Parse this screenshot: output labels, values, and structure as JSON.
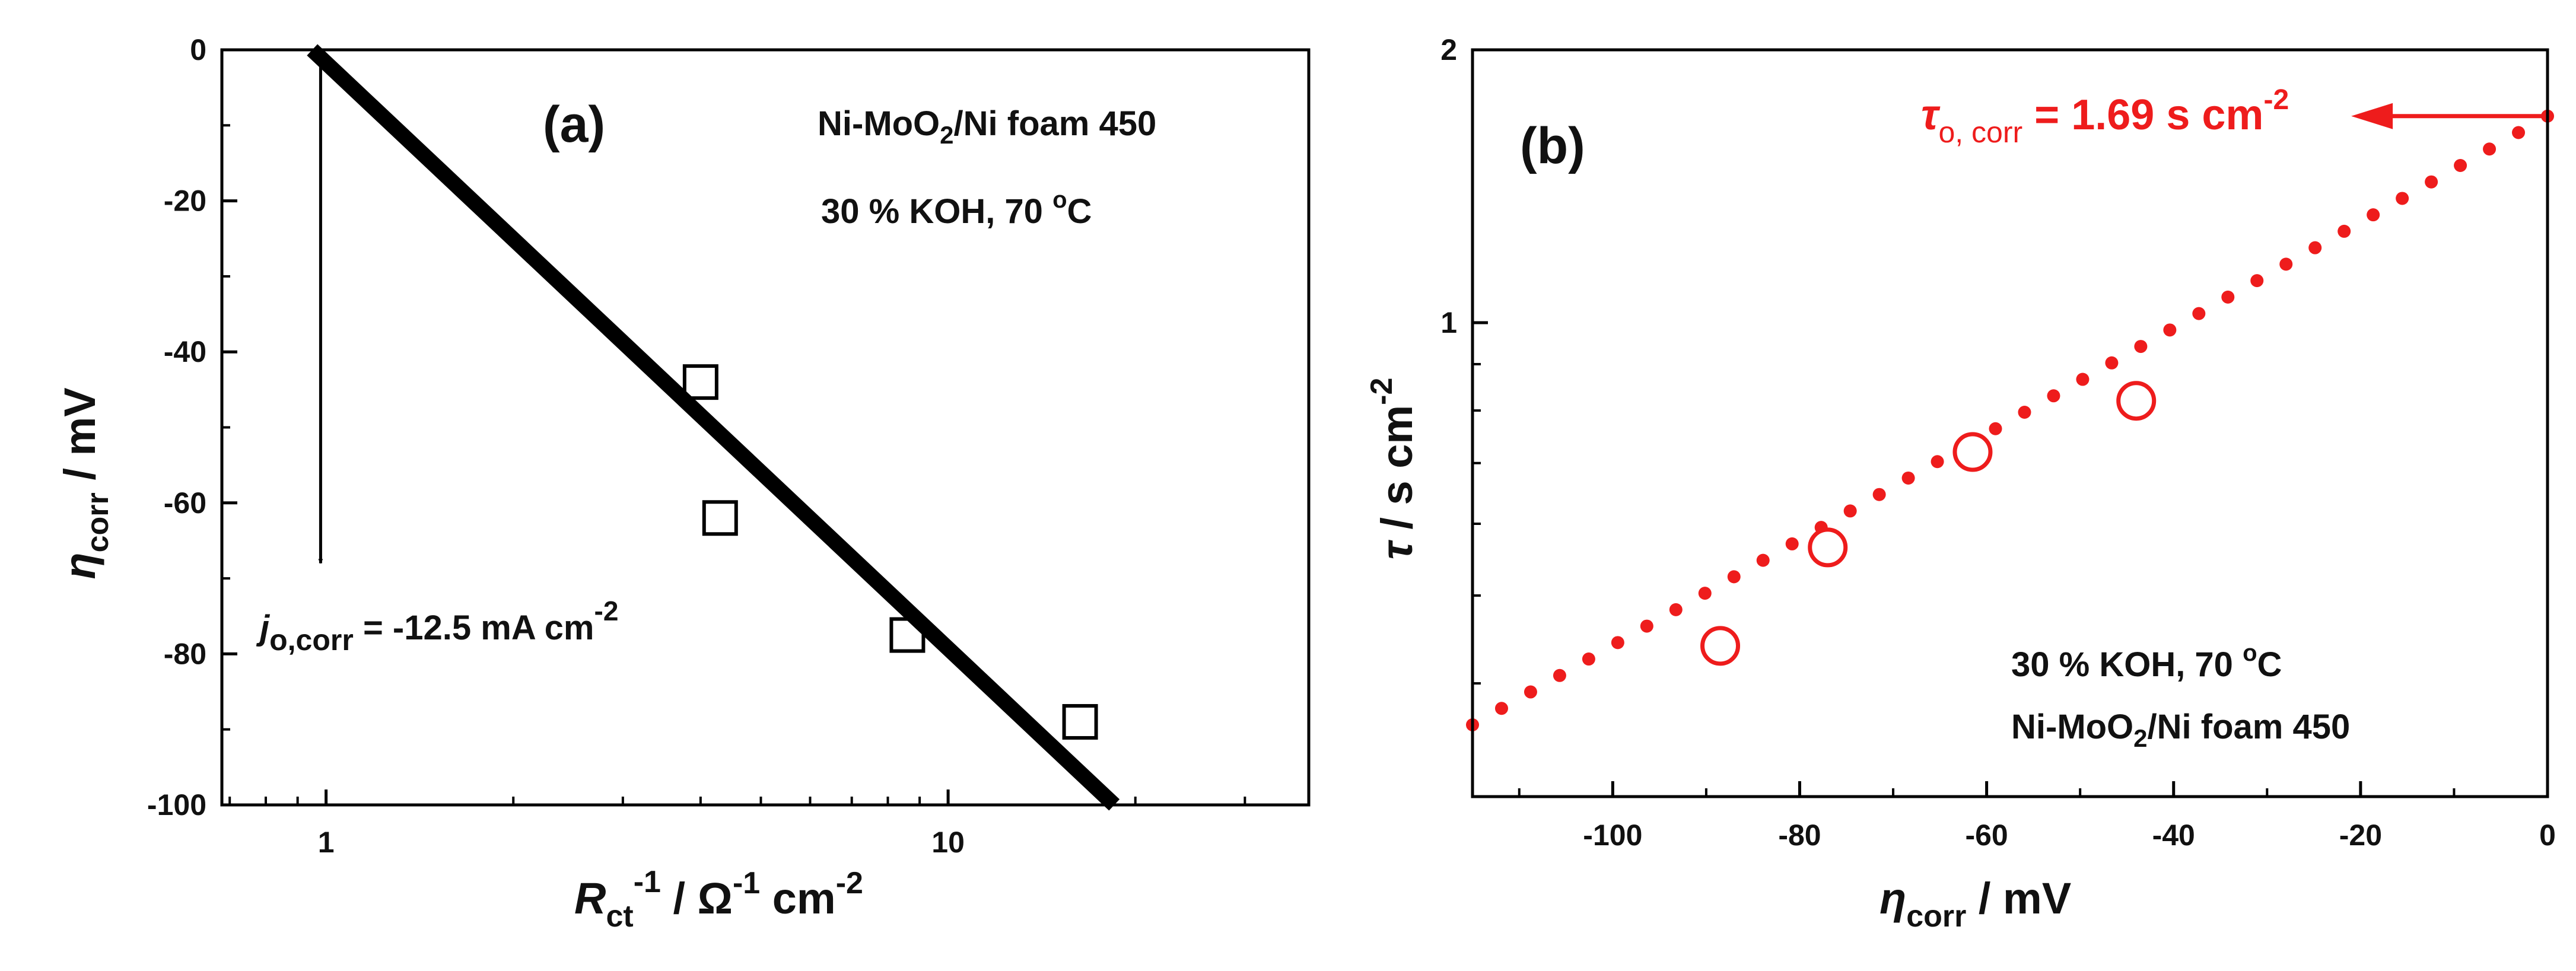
{
  "colors": {
    "black": "#000000",
    "red": "#ee1c1c"
  },
  "chart_data": [
    {
      "panel": "(a)",
      "type": "scatter",
      "x_scale": "log",
      "xlim": [
        0.68,
        38
      ],
      "ylim": [
        -100,
        0
      ],
      "x_ticks": [
        1,
        10
      ],
      "x_tick_labels": [
        "1",
        "10"
      ],
      "y_ticks": [
        0,
        -20,
        -40,
        -60,
        -80,
        -100
      ],
      "y_tick_labels": [
        "0",
        "-20",
        "-40",
        "-60",
        "-80",
        "-100"
      ],
      "xlabel": {
        "main": "R",
        "sub": "ct",
        "sup": "-1",
        "rest": " / Ω",
        "sup2": "-1",
        "rest2": " cm",
        "sup3": "-2"
      },
      "ylabel": {
        "main": "η",
        "sub": "corr",
        "rest": " / mV"
      },
      "series": [
        {
          "name": "data",
          "marker": "open-square",
          "x": [
            4.0,
            4.3,
            8.6,
            16.3
          ],
          "y": [
            -44,
            -62,
            -77.5,
            -89
          ]
        },
        {
          "name": "fit",
          "style": "thick-line",
          "x": [
            0.95,
            18.5
          ],
          "y": [
            0,
            -100
          ]
        }
      ],
      "arrow": {
        "x": 0.98,
        "from_y": 0,
        "to_y": -68
      },
      "annotations": {
        "sample_main": "Ni-MoO",
        "sample_sub": "2",
        "sample_rest": "/Ni foam 450",
        "electrolyte": "30 % KOH, 70 ",
        "degree": "o",
        "unit_c": "C",
        "j0_main": "j",
        "j0_sub": "o,corr",
        "j0_value": " = -12.5 mA cm",
        "j0_sup": "-2"
      }
    },
    {
      "panel": "(b)",
      "type": "scatter",
      "y_scale": "log",
      "xlim": [
        -115,
        0
      ],
      "ylim": [
        0.3,
        2
      ],
      "x_ticks": [
        -100,
        -80,
        -60,
        -40,
        -20,
        0
      ],
      "x_tick_labels": [
        "-100",
        "-80",
        "-60",
        "-40",
        "-20",
        "0"
      ],
      "y_ticks": [
        1,
        2
      ],
      "y_tick_labels": [
        "1",
        "2"
      ],
      "xlabel": {
        "main": "η",
        "sub": "corr",
        "rest": " / mV"
      },
      "ylabel": {
        "main": "τ",
        "rest": " / s cm",
        "sup": "-2"
      },
      "series": [
        {
          "name": "data",
          "marker": "open-circle",
          "color": "#ee1c1c",
          "x": [
            -88.5,
            -77,
            -61.5,
            -44
          ],
          "y": [
            0.44,
            0.565,
            0.72,
            0.82
          ]
        },
        {
          "name": "fit",
          "style": "dotted",
          "color": "#ee1c1c",
          "x": [
            -115,
            0
          ],
          "y": [
            0.36,
            1.69
          ]
        }
      ],
      "arrow": {
        "y": 1.69,
        "from_x": 0,
        "to_x": -21
      },
      "annotations": {
        "tau_main": "τ",
        "tau_sub": "o, corr",
        "tau_value": " = 1.69 s cm",
        "tau_sup": "-2",
        "electrolyte": "30 % KOH, 70 ",
        "degree": "o",
        "unit_c": "C",
        "sample_main": "Ni-MoO",
        "sample_sub": "2",
        "sample_rest": "/Ni foam 450"
      }
    }
  ]
}
